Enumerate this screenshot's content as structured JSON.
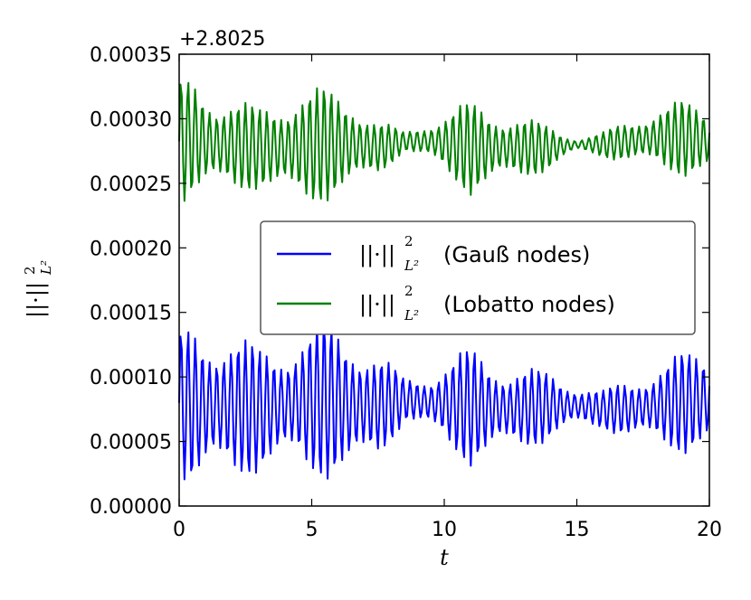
{
  "chart_data": {
    "type": "line",
    "xlabel": "t",
    "ylabel": "||·||²_{L²}",
    "ylabel_norm": "||·||",
    "ylabel_sup": "2",
    "ylabel_sub": "L²",
    "offset_text": "+2.8025",
    "xlim": [
      0,
      20
    ],
    "ylim": [
      0.0,
      0.00035
    ],
    "xticks": [
      0,
      5,
      10,
      15,
      20
    ],
    "xtick_labels": [
      "0",
      "5",
      "10",
      "15",
      "20"
    ],
    "yticks": [
      0.0,
      5e-05,
      0.0001,
      0.00015,
      0.0002,
      0.00025,
      0.0003,
      0.00035
    ],
    "ytick_labels": [
      "0.00000",
      "0.00005",
      "0.00010",
      "0.00015",
      "0.00020",
      "0.00025",
      "0.00030",
      "0.00035"
    ],
    "grid": false,
    "legend_position": "center-right",
    "series": [
      {
        "name": "(Gauß nodes)",
        "legend_norm": "||·||",
        "legend_sup": "2",
        "legend_sub": "L²",
        "color": "#0000ff",
        "sample_step": 0.05,
        "envelope_t": [
          0,
          0.5,
          1.5,
          3,
          4.5,
          5.5,
          6.5,
          7.5,
          8.5,
          9.5,
          11,
          12.5,
          14,
          15,
          16,
          17,
          18,
          19,
          20
        ],
        "envelope_min": [
          2.5e-05,
          1e-05,
          1.5e-05,
          2.5e-05,
          2.5e-05,
          2e-05,
          1.5e-05,
          3.5e-05,
          6.5e-05,
          5.5e-05,
          3e-05,
          4e-05,
          5e-05,
          6e-05,
          6e-05,
          5e-05,
          4.5e-05,
          4e-05,
          4e-05
        ],
        "envelope_max": [
          0.000135,
          0.000145,
          0.00014,
          0.000125,
          0.000135,
          0.000145,
          0.00014,
          0.00012,
          0.0001,
          0.000105,
          0.000125,
          0.00011,
          0.000105,
          9.5e-05,
          9e-05,
          0.0001,
          0.00011,
          0.00012,
          0.000125
        ],
        "oscillation_period": 0.27
      },
      {
        "name": "(Lobatto nodes)",
        "legend_norm": "||·||",
        "legend_sup": "2",
        "legend_sub": "L²",
        "color": "#008000",
        "sample_step": 0.05,
        "envelope_t": [
          0,
          0.5,
          1.5,
          3,
          4.5,
          5.5,
          6.5,
          7.5,
          8.5,
          9.5,
          11,
          12.5,
          14,
          15,
          16,
          17,
          18,
          19,
          20
        ],
        "envelope_min": [
          0.000235,
          0.000235,
          0.00024,
          0.000245,
          0.00023,
          0.000235,
          0.00024,
          0.000255,
          0.000275,
          0.000265,
          0.00024,
          0.00025,
          0.00026,
          0.000275,
          0.00027,
          0.000265,
          0.00026,
          0.000255,
          0.000255
        ],
        "envelope_max": [
          0.00033,
          0.000335,
          0.00032,
          0.00031,
          0.000325,
          0.000325,
          0.00032,
          0.0003,
          0.00029,
          0.0003,
          0.000315,
          0.000305,
          0.000295,
          0.000285,
          0.00029,
          0.0003,
          0.00031,
          0.000315,
          0.00031
        ],
        "oscillation_period": 0.27
      }
    ]
  }
}
